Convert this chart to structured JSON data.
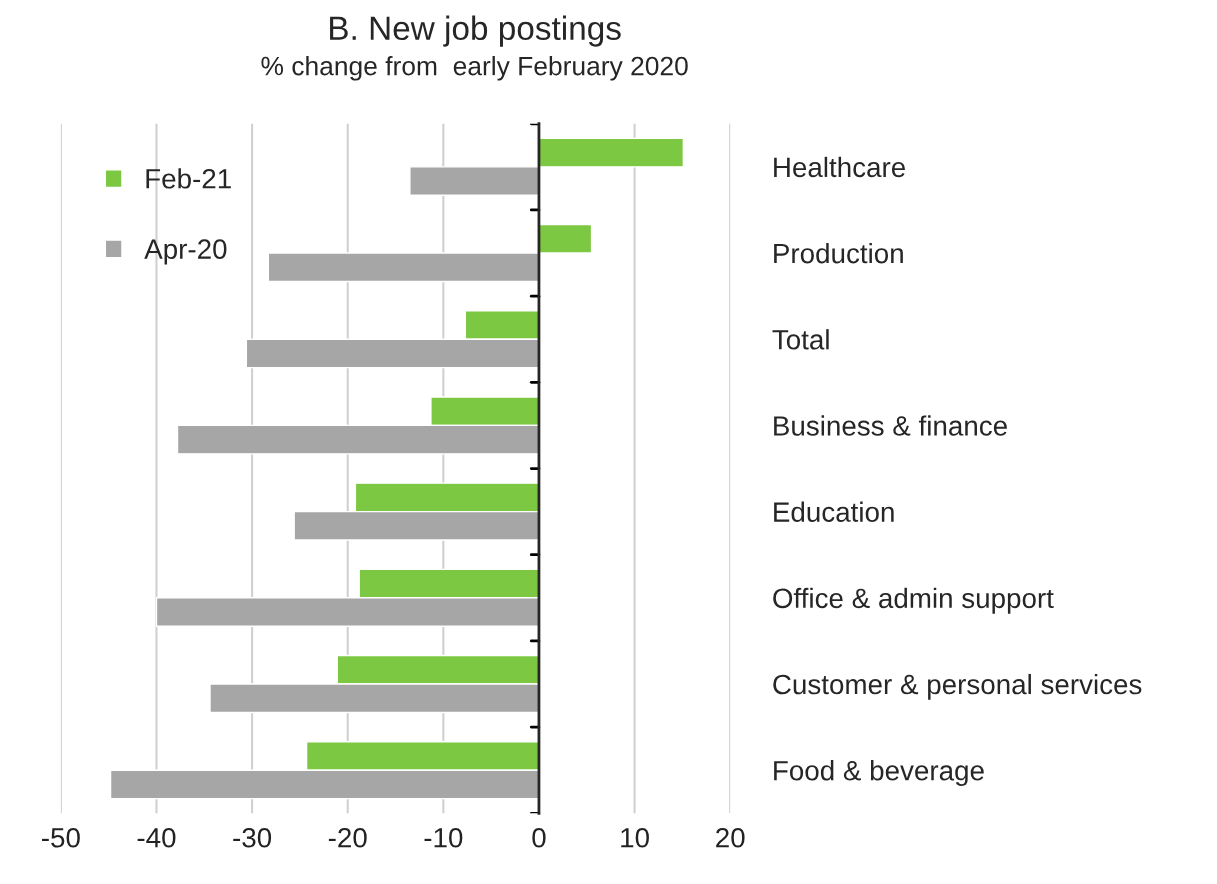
{
  "chart_data": {
    "type": "bar",
    "orientation": "horizontal",
    "title": "B. New job postings",
    "subtitle": "% change from  early February 2020",
    "categories": [
      "Healthcare",
      "Production",
      "Total",
      "Business & finance",
      "Education",
      "Office & admin support",
      "Customer & personal services",
      "Food & beverage"
    ],
    "series": [
      {
        "name": "Feb-21",
        "color": "#7dc843",
        "values": [
          15.1,
          5.5,
          -7.7,
          -11.3,
          -19.2,
          -18.8,
          -21.1,
          -24.3
        ]
      },
      {
        "name": "Apr-20",
        "color": "#a6a6a6",
        "values": [
          -13.5,
          -28.3,
          -30.6,
          -37.8,
          -25.6,
          -40.0,
          -34.4,
          -44.8
        ]
      }
    ],
    "xlim": [
      -50,
      20
    ],
    "xticks": [
      -50,
      -40,
      -30,
      -20,
      -10,
      0,
      10,
      20
    ],
    "grid": "x",
    "legend": "top left"
  }
}
